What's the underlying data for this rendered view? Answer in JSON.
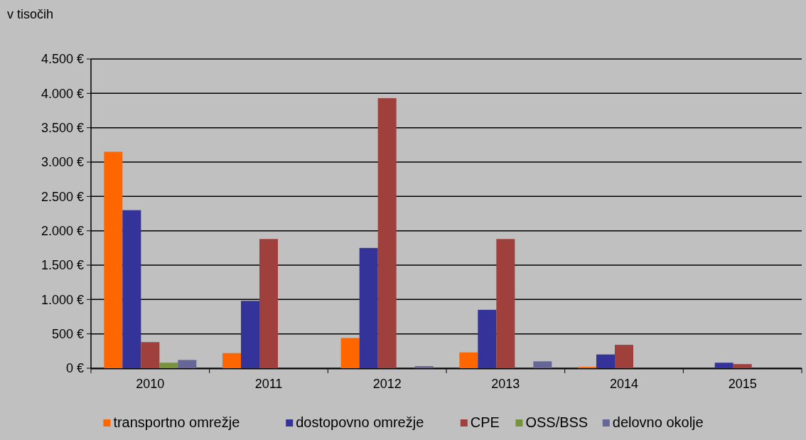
{
  "chart_data": {
    "type": "bar",
    "ylabel": "v tisočih",
    "categories": [
      "2010",
      "2011",
      "2012",
      "2013",
      "2014",
      "2015"
    ],
    "series": [
      {
        "name": "transportno omrežje",
        "color": "#ff6600",
        "values": [
          3150,
          220,
          440,
          230,
          20,
          0
        ]
      },
      {
        "name": "dostopovno omrežje",
        "color": "#333399",
        "values": [
          2300,
          980,
          1750,
          850,
          200,
          80
        ]
      },
      {
        "name": "CPE",
        "color": "#a0403c",
        "values": [
          380,
          1880,
          3930,
          1880,
          340,
          60
        ]
      },
      {
        "name": "OSS/BSS",
        "color": "#77933c",
        "values": [
          80,
          0,
          0,
          0,
          0,
          0
        ]
      },
      {
        "name": "delovno okolje",
        "color": "#666699",
        "values": [
          120,
          0,
          30,
          100,
          0,
          0
        ]
      }
    ],
    "ylim": [
      0,
      4500
    ],
    "yticks": [
      {
        "value": 0,
        "label": "0 €"
      },
      {
        "value": 500,
        "label": "500 €"
      },
      {
        "value": 1000,
        "label": "1.000 €"
      },
      {
        "value": 1500,
        "label": "1.500 €"
      },
      {
        "value": 2000,
        "label": "2.000 €"
      },
      {
        "value": 2500,
        "label": "2.500 €"
      },
      {
        "value": 3000,
        "label": "3.000 €"
      },
      {
        "value": 3500,
        "label": "3.500 €"
      },
      {
        "value": 4000,
        "label": "4.000 €"
      },
      {
        "value": 4500,
        "label": "4.500 €"
      }
    ],
    "grid": "y",
    "legend": "bottom"
  }
}
